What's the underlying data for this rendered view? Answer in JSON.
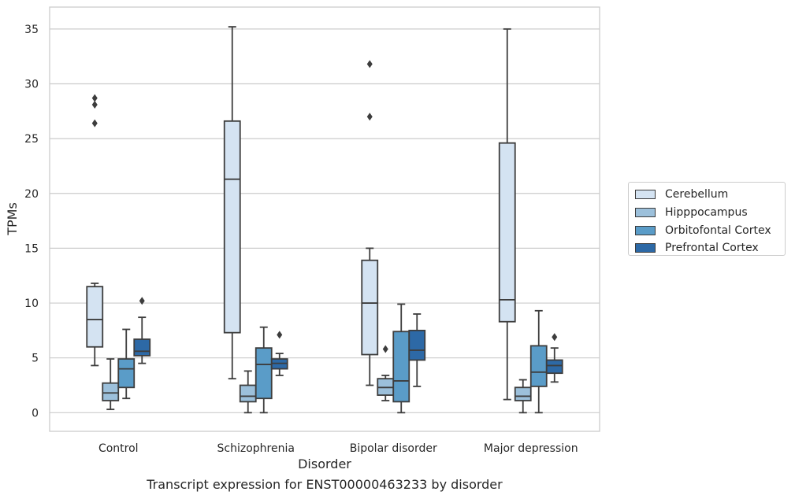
{
  "chart_data": {
    "type": "boxplot",
    "xlabel": "Disorder",
    "ylabel": "TPMs",
    "ylim": [
      -1.7,
      37
    ],
    "yticks": [
      0,
      5,
      10,
      15,
      20,
      25,
      30,
      35
    ],
    "grid": "horizontal",
    "legend_position": "right",
    "categories": [
      "Control",
      "Schizophrenia",
      "Bipolar disorder",
      "Major depression"
    ],
    "series": [
      {
        "name": "Cerebellum",
        "color": "#d4e3f2",
        "boxes": [
          {
            "whislo": 4.3,
            "q1": 6.0,
            "med": 8.5,
            "q3": 11.5,
            "whishi": 11.8,
            "fliers": [
              26.4,
              28.1,
              28.7
            ]
          },
          {
            "whislo": 3.1,
            "q1": 7.3,
            "med": 21.3,
            "q3": 26.6,
            "whishi": 35.2,
            "fliers": []
          },
          {
            "whislo": 2.5,
            "q1": 5.3,
            "med": 10.0,
            "q3": 13.9,
            "whishi": 15.0,
            "fliers": [
              27.0,
              31.8
            ]
          },
          {
            "whislo": 1.2,
            "q1": 8.3,
            "med": 10.3,
            "q3": 24.6,
            "whishi": 35.0,
            "fliers": []
          }
        ]
      },
      {
        "name": "Hipppocampus",
        "color": "#9cc0db",
        "boxes": [
          {
            "whislo": 0.3,
            "q1": 1.1,
            "med": 1.8,
            "q3": 2.7,
            "whishi": 4.9,
            "fliers": []
          },
          {
            "whislo": 0.0,
            "q1": 1.0,
            "med": 1.5,
            "q3": 2.5,
            "whishi": 3.8,
            "fliers": []
          },
          {
            "whislo": 1.1,
            "q1": 1.6,
            "med": 2.3,
            "q3": 3.1,
            "whishi": 3.4,
            "fliers": [
              5.8
            ]
          },
          {
            "whislo": 0.0,
            "q1": 1.1,
            "med": 1.5,
            "q3": 2.3,
            "whishi": 3.0,
            "fliers": []
          }
        ]
      },
      {
        "name": "Orbitofontal Cortex",
        "color": "#5a9cc8",
        "boxes": [
          {
            "whislo": 1.3,
            "q1": 2.3,
            "med": 4.0,
            "q3": 4.9,
            "whishi": 7.6,
            "fliers": []
          },
          {
            "whislo": 0.0,
            "q1": 1.3,
            "med": 4.4,
            "q3": 5.9,
            "whishi": 7.8,
            "fliers": []
          },
          {
            "whislo": 0.0,
            "q1": 1.0,
            "med": 2.9,
            "q3": 7.4,
            "whishi": 9.9,
            "fliers": []
          },
          {
            "whislo": 0.0,
            "q1": 2.4,
            "med": 3.7,
            "q3": 6.1,
            "whishi": 9.3,
            "fliers": []
          }
        ]
      },
      {
        "name": "Prefrontal Cortex",
        "color": "#2d69a6",
        "boxes": [
          {
            "whislo": 4.5,
            "q1": 5.2,
            "med": 5.6,
            "q3": 6.7,
            "whishi": 8.7,
            "fliers": [
              10.2
            ]
          },
          {
            "whislo": 3.4,
            "q1": 4.0,
            "med": 4.5,
            "q3": 4.9,
            "whishi": 5.4,
            "fliers": [
              7.1
            ]
          },
          {
            "whislo": 2.4,
            "q1": 4.8,
            "med": 5.7,
            "q3": 7.5,
            "whishi": 9.0,
            "fliers": []
          },
          {
            "whislo": 2.8,
            "q1": 3.6,
            "med": 4.3,
            "q3": 4.8,
            "whishi": 5.9,
            "fliers": [
              6.9
            ]
          }
        ]
      }
    ],
    "caption": "Transcript expression for ENST00000463233 by disorder"
  }
}
